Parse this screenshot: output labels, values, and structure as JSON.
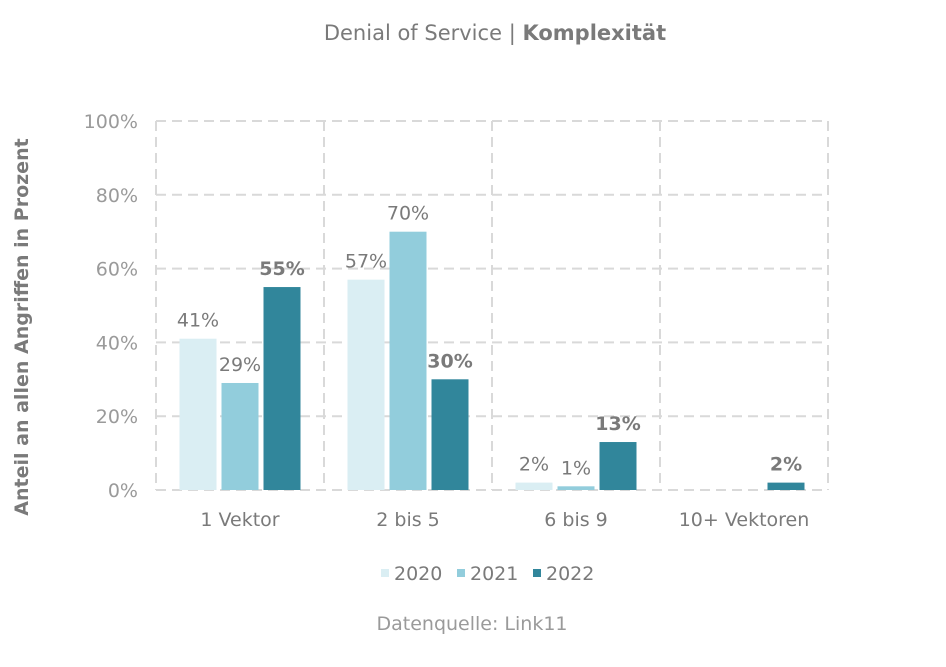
{
  "chart_data": {
    "type": "bar",
    "title": "Denial of Service",
    "title_bold": "Komplexität",
    "title_separator": "|",
    "ylabel": "Anteil an allen Angriffen in Prozent",
    "xlabel": "",
    "ylim": [
      0,
      100
    ],
    "yticks": [
      0,
      20,
      40,
      60,
      80,
      100
    ],
    "ytick_labels": [
      "0%",
      "20%",
      "40%",
      "60%",
      "80%",
      "100%"
    ],
    "categories": [
      "1 Vektor",
      "2 bis 5",
      "6 bis 9",
      "10+ Vektoren"
    ],
    "series": [
      {
        "name": "2020",
        "color": "#daeef3",
        "values": [
          41,
          57,
          2,
          0
        ],
        "labels": [
          "41%",
          "57%",
          "2%",
          ""
        ],
        "bold": false
      },
      {
        "name": "2021",
        "color": "#92cddc",
        "values": [
          29,
          70,
          1,
          0
        ],
        "labels": [
          "29%",
          "70%",
          "1%",
          ""
        ],
        "bold": false
      },
      {
        "name": "2022",
        "color": "#31869b",
        "values": [
          55,
          30,
          13,
          2
        ],
        "labels": [
          "55%",
          "30%",
          "13%",
          "2%"
        ],
        "bold": true
      }
    ],
    "grid": true,
    "legend_position": "bottom",
    "source": "Datenquelle: Link11"
  }
}
